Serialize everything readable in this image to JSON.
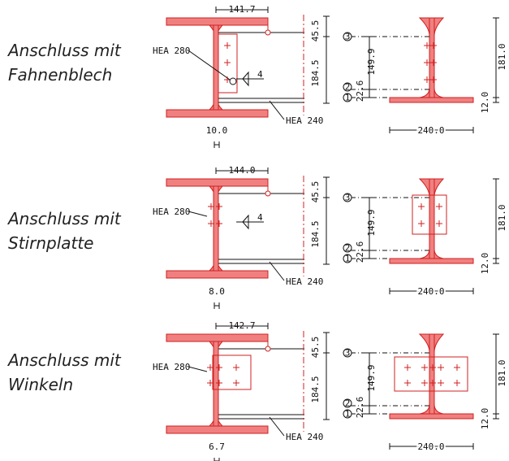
{
  "colors": {
    "steel_fill": "#f08080",
    "steel_stroke": "#d02020",
    "ink": "#111111"
  },
  "rows": [
    {
      "id": "fahnenblech",
      "title": "Anschluss mit\nFahnenblech",
      "top_dim": "141.7",
      "beam_left": "HEA 280",
      "beam_right": "HEA 240",
      "weld": "4",
      "vert_dim_top": "45.5",
      "vert_dim_main": "184.5",
      "thickness": "10.0",
      "markers": [
        "3",
        "2",
        "1"
      ],
      "height_dim": "149.9",
      "gap_dim": "22.6",
      "depth_dim": "181.0",
      "flange_dim": "12.0",
      "width_dim": "240.0"
    },
    {
      "id": "stirnplatte",
      "title": "Anschluss mit\nStirnplatte",
      "top_dim": "144.0",
      "beam_left": "HEA 280",
      "beam_right": "HEA 240",
      "weld": "4",
      "vert_dim_top": "45.5",
      "vert_dim_main": "184.5",
      "thickness": "8.0",
      "markers": [
        "3",
        "2",
        "1"
      ],
      "height_dim": "149.9",
      "gap_dim": "22.6",
      "depth_dim": "181.0",
      "flange_dim": "12.0",
      "width_dim": "240.0"
    },
    {
      "id": "winkeln",
      "title": "Anschluss mit\nWinkeln",
      "top_dim": "142.7",
      "beam_left": "HEA 280",
      "beam_right": "HEA 240",
      "weld": "",
      "vert_dim_top": "45.5",
      "vert_dim_main": "184.5",
      "thickness": "6.7",
      "markers": [
        "3",
        "2",
        "1"
      ],
      "height_dim": "149.9",
      "gap_dim": "22.6",
      "depth_dim": "181.0",
      "flange_dim": "12.0",
      "width_dim": "240.0"
    }
  ]
}
